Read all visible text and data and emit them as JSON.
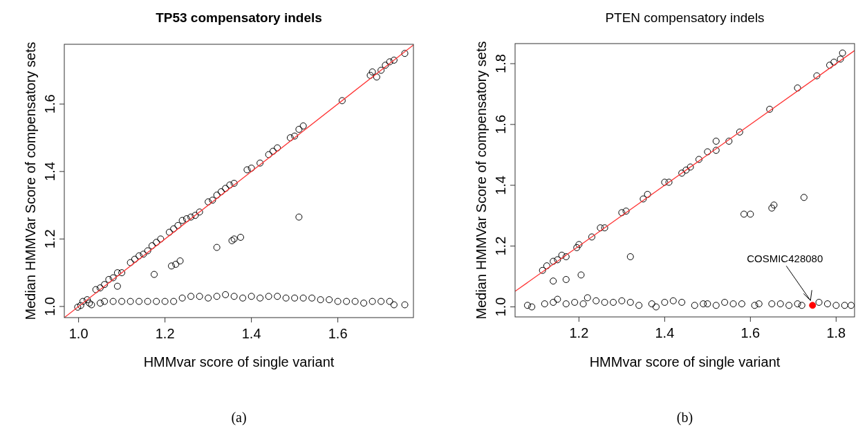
{
  "chart_data": [
    {
      "type": "scatter",
      "title": "TP53 compensatory indels",
      "xlabel": "HMMvar score of single variant",
      "ylabel": "Median HMMVar Score of compensatory sets",
      "xlim": [
        0.967,
        1.775
      ],
      "ylim": [
        0.967,
        1.777
      ],
      "xticks": [
        {
          "value": 1.0,
          "label": "1.0"
        },
        1.2,
        1.4,
        1.6
      ],
      "yticks": [
        {
          "value": 1.0,
          "label": "1.0"
        },
        1.2,
        1.4,
        1.6
      ],
      "marker": "circle",
      "annotations": [
        "(a)"
      ],
      "series": [
        {
          "color": "#000000",
          "x": [
            0.998,
            1.005,
            1.01,
            1.02,
            1.04,
            1.05,
            1.06,
            1.07,
            1.08,
            1.09,
            1.1,
            1.12,
            1.13,
            1.14,
            1.15,
            1.16,
            1.17,
            1.18,
            1.19,
            1.21,
            1.22,
            1.23,
            1.24,
            1.25,
            1.26,
            1.27,
            1.28,
            1.3,
            1.31,
            1.32,
            1.33,
            1.34,
            1.35,
            1.36,
            1.39,
            1.4,
            1.42,
            1.44,
            1.45,
            1.46,
            1.49,
            1.5,
            1.51,
            1.52,
            1.61,
            1.675,
            1.68,
            1.69,
            1.7,
            1.71,
            1.72,
            1.73,
            1.755,
            1.09,
            1.175,
            1.215,
            1.225,
            1.235,
            1.32,
            1.355,
            1.36,
            1.375,
            1.51,
            1.025,
            1.03,
            1.05,
            1.06,
            1.08,
            1.1,
            1.12,
            1.14,
            1.16,
            1.18,
            1.2,
            1.22,
            1.24,
            1.26,
            1.28,
            1.3,
            1.32,
            1.34,
            1.36,
            1.38,
            1.4,
            1.42,
            1.44,
            1.46,
            1.48,
            1.5,
            1.52,
            1.54,
            1.56,
            1.58,
            1.6,
            1.62,
            1.64,
            1.66,
            1.68,
            1.7,
            1.72,
            1.73,
            1.755
          ],
          "values": [
            0.998,
            1.003,
            1.015,
            1.02,
            1.05,
            1.055,
            1.065,
            1.08,
            1.085,
            1.1,
            1.1,
            1.13,
            1.14,
            1.15,
            1.155,
            1.165,
            1.18,
            1.19,
            1.2,
            1.22,
            1.23,
            1.24,
            1.255,
            1.26,
            1.265,
            1.27,
            1.28,
            1.31,
            1.315,
            1.33,
            1.34,
            1.35,
            1.36,
            1.365,
            1.405,
            1.41,
            1.425,
            1.45,
            1.46,
            1.47,
            1.5,
            1.505,
            1.525,
            1.535,
            1.61,
            1.685,
            1.695,
            1.68,
            1.7,
            1.715,
            1.725,
            1.73,
            1.75,
            1.06,
            1.095,
            1.12,
            1.125,
            1.135,
            1.175,
            1.195,
            1.2,
            1.205,
            1.265,
            1.01,
            1.005,
            1.01,
            1.015,
            1.015,
            1.015,
            1.015,
            1.015,
            1.015,
            1.015,
            1.015,
            1.015,
            1.025,
            1.03,
            1.03,
            1.025,
            1.03,
            1.035,
            1.03,
            1.025,
            1.03,
            1.025,
            1.03,
            1.03,
            1.025,
            1.025,
            1.025,
            1.025,
            1.02,
            1.02,
            1.015,
            1.015,
            1.015,
            1.01,
            1.015,
            1.015,
            1.015,
            1.005,
            1.005
          ]
        },
        {
          "type": "line",
          "marker": "none",
          "color": "#ff3333",
          "x": [
            0.967,
            1.775
          ],
          "values": [
            0.967,
            1.775
          ]
        }
      ]
    },
    {
      "type": "scatter",
      "title": "PTEN compensatory indels",
      "xlabel": "HMMvar score of single variant",
      "ylabel": "Median HMMVar Score of compensatory sets",
      "xlim": [
        1.051,
        1.843
      ],
      "ylim": [
        0.967,
        1.866
      ],
      "xticks": [
        1.2,
        1.4,
        1.6,
        1.8
      ],
      "yticks": [
        {
          "value": 1.0,
          "label": "1.0"
        },
        1.2,
        1.4,
        1.6,
        1.8
      ],
      "marker": "circle",
      "annotations": [
        {
          "text": "COSMIC428080",
          "x": 1.745,
          "y": 1.005
        },
        "(b)"
      ],
      "series": [
        {
          "color": "#000000",
          "x": [
            1.115,
            1.125,
            1.14,
            1.15,
            1.16,
            1.17,
            1.195,
            1.2,
            1.23,
            1.25,
            1.26,
            1.3,
            1.31,
            1.35,
            1.36,
            1.4,
            1.41,
            1.44,
            1.45,
            1.46,
            1.48,
            1.5,
            1.52,
            1.52,
            1.55,
            1.575,
            1.645,
            1.71,
            1.755,
            1.785,
            1.795,
            1.81,
            1.815,
            1.14,
            1.17,
            1.205,
            1.32,
            1.585,
            1.6,
            1.65,
            1.655,
            1.725,
            1.08,
            1.09,
            1.12,
            1.14,
            1.15,
            1.17,
            1.19,
            1.21,
            1.22,
            1.24,
            1.26,
            1.28,
            1.3,
            1.32,
            1.34,
            1.37,
            1.38,
            1.4,
            1.42,
            1.44,
            1.47,
            1.49,
            1.5,
            1.52,
            1.54,
            1.56,
            1.58,
            1.61,
            1.62,
            1.65,
            1.67,
            1.69,
            1.71,
            1.72,
            1.76,
            1.78,
            1.8,
            1.82,
            1.835
          ],
          "values": [
            1.12,
            1.135,
            1.15,
            1.155,
            1.17,
            1.165,
            1.195,
            1.205,
            1.23,
            1.26,
            1.26,
            1.31,
            1.315,
            1.355,
            1.37,
            1.41,
            1.41,
            1.44,
            1.45,
            1.46,
            1.485,
            1.51,
            1.515,
            1.545,
            1.545,
            1.575,
            1.65,
            1.72,
            1.76,
            1.795,
            1.805,
            1.815,
            1.835,
            1.085,
            1.09,
            1.105,
            1.165,
            1.305,
            1.305,
            1.325,
            1.335,
            1.36,
            1.005,
            1.0,
            1.01,
            1.015,
            1.025,
            1.01,
            1.015,
            1.01,
            1.03,
            1.02,
            1.015,
            1.015,
            1.02,
            1.015,
            1.005,
            1.01,
            1.0,
            1.015,
            1.02,
            1.015,
            1.005,
            1.01,
            1.01,
            1.005,
            1.015,
            1.01,
            1.01,
            1.005,
            1.01,
            1.01,
            1.01,
            1.005,
            1.01,
            1.005,
            1.015,
            1.01,
            1.005,
            1.005,
            1.005
          ]
        },
        {
          "color": "#ff0000",
          "x": [
            1.745
          ],
          "values": [
            1.005
          ]
        },
        {
          "type": "line",
          "marker": "none",
          "color": "#ff3333",
          "x": [
            1.051,
            1.843
          ],
          "values": [
            1.051,
            1.843
          ]
        }
      ]
    }
  ]
}
